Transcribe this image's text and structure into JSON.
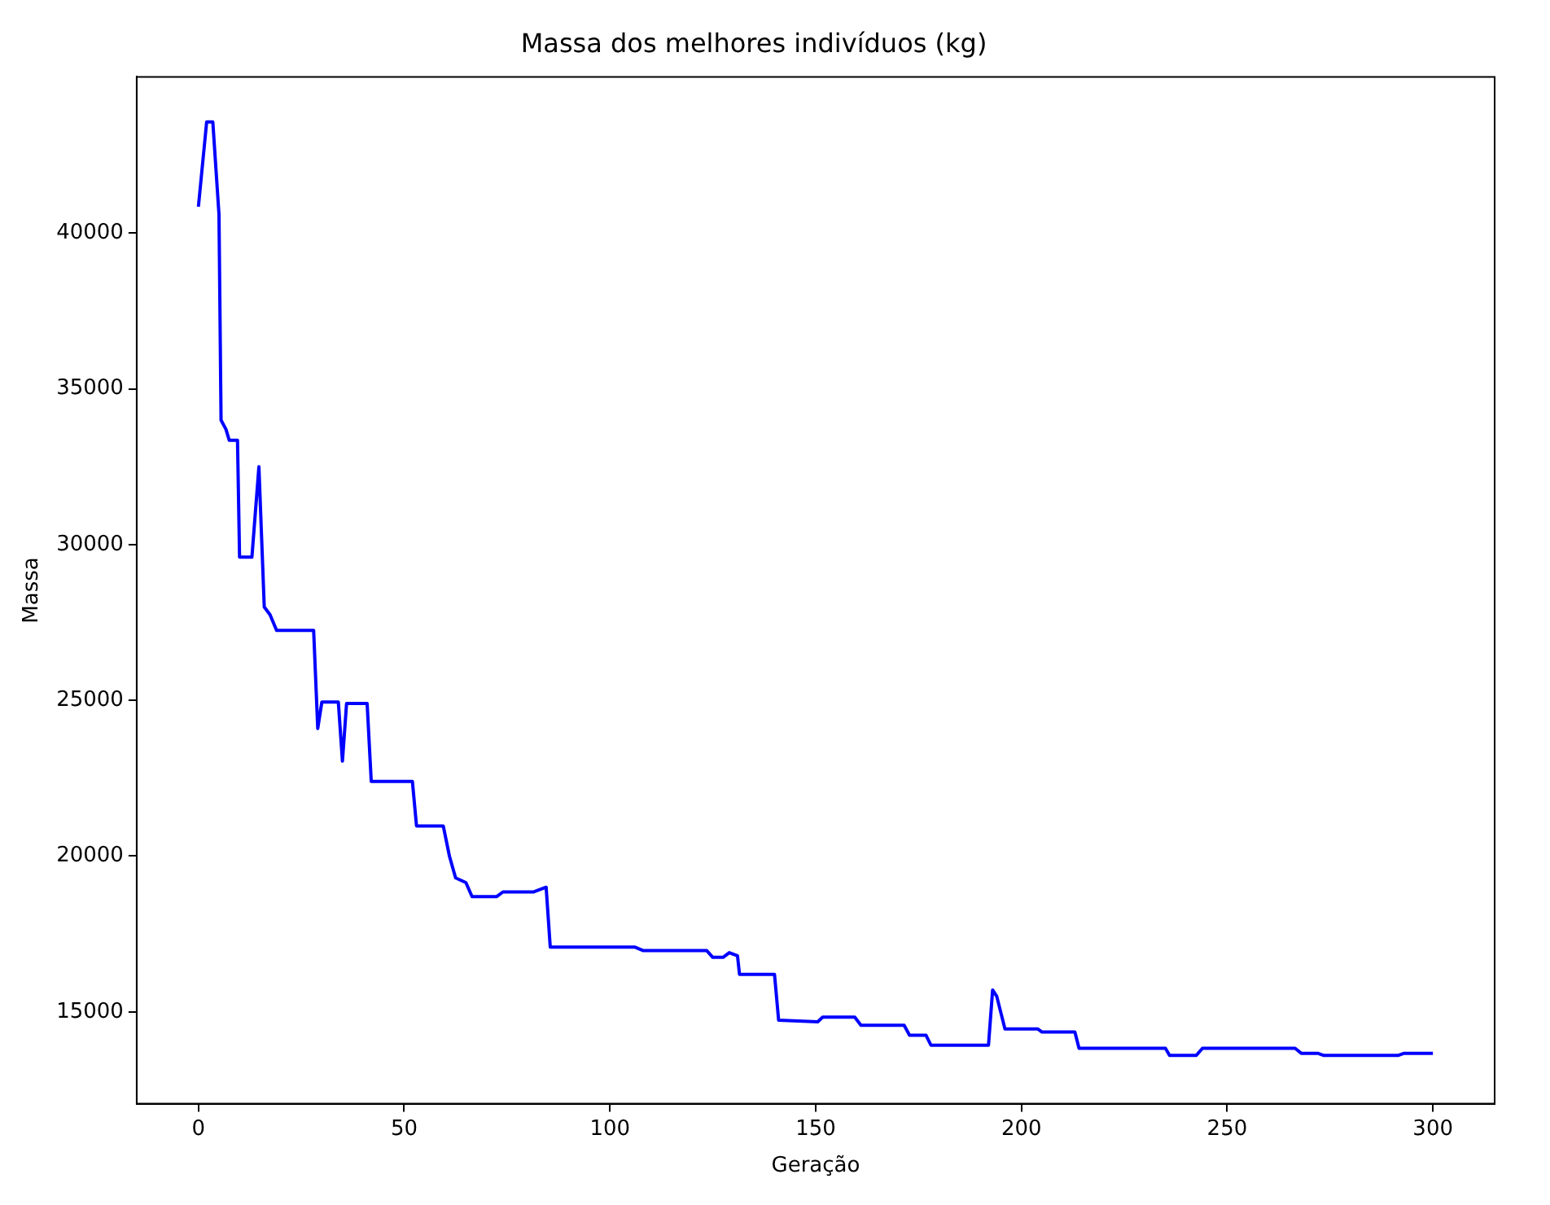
{
  "chart_data": {
    "type": "line",
    "title": "Massa dos melhores indivíduos (kg)",
    "xlabel": "Geração",
    "ylabel": "Massa",
    "xlim": [
      -15,
      315
    ],
    "ylim": [
      12050,
      45020
    ],
    "xticks": [
      0,
      50,
      100,
      150,
      200,
      250,
      300
    ],
    "yticks": [
      15000,
      20000,
      25000,
      30000,
      35000,
      40000
    ],
    "grid": false,
    "legend": false,
    "series": [
      {
        "color": "#0000ff",
        "x": [
          0,
          2,
          3.5,
          5,
          5.5,
          6.7,
          7.5,
          9.5,
          10,
          13,
          14.7,
          16,
          17.4,
          19,
          28,
          29,
          30,
          34,
          35,
          36,
          41,
          42,
          52,
          53,
          59.5,
          61,
          62.5,
          65,
          66.5,
          72.5,
          74,
          81.5,
          84.5,
          85.5,
          106,
          108,
          123.5,
          125,
          127.5,
          129,
          131,
          131.5,
          140,
          141,
          150.5,
          151.7,
          159.5,
          161,
          171.5,
          172.8,
          176.8,
          178,
          192,
          193,
          194,
          196,
          204,
          205,
          213,
          214,
          235,
          236,
          242.5,
          244,
          266.5,
          268,
          272,
          273.5,
          291.5,
          293,
          300
        ],
        "values": [
          40850,
          43570,
          43570,
          40600,
          34000,
          33700,
          33350,
          33350,
          29600,
          29600,
          32500,
          28000,
          27750,
          27250,
          27250,
          24100,
          24950,
          24950,
          23050,
          24900,
          24900,
          22400,
          22400,
          20970,
          20970,
          20000,
          19300,
          19150,
          18700,
          18700,
          18850,
          18850,
          19000,
          17080,
          17080,
          16970,
          16970,
          16750,
          16750,
          16900,
          16800,
          16200,
          16200,
          14730,
          14680,
          14830,
          14830,
          14570,
          14570,
          14250,
          14250,
          13930,
          13930,
          15700,
          15500,
          14450,
          14450,
          14350,
          14350,
          13830,
          13830,
          13600,
          13600,
          13830,
          13830,
          13670,
          13670,
          13600,
          13600,
          13670,
          13670
        ]
      }
    ]
  }
}
